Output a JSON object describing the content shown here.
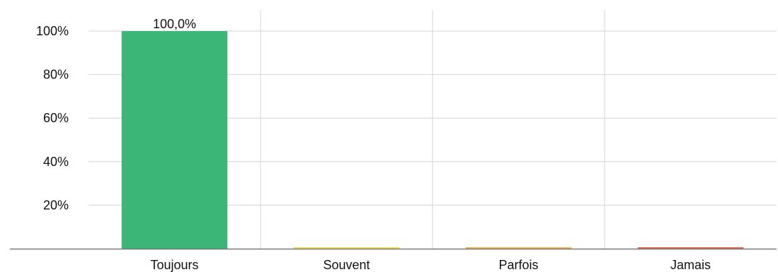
{
  "chart_data": {
    "type": "bar",
    "title": "",
    "xlabel": "",
    "ylabel": "",
    "categories": [
      "Toujours",
      "Souvent",
      "Parfois",
      "Jamais"
    ],
    "values": [
      100,
      0,
      0,
      0
    ],
    "data_labels": [
      "100,0%",
      "",
      "",
      ""
    ],
    "colors": [
      "#3bb677",
      "#f2d94e",
      "#f0b54a",
      "#e0624a"
    ],
    "ylim": [
      0,
      100
    ],
    "yticks": [
      20,
      40,
      60,
      80,
      100
    ],
    "ytick_labels": [
      "20%",
      "40%",
      "60%",
      "80%",
      "100%"
    ],
    "grid": true,
    "legend": "none"
  }
}
